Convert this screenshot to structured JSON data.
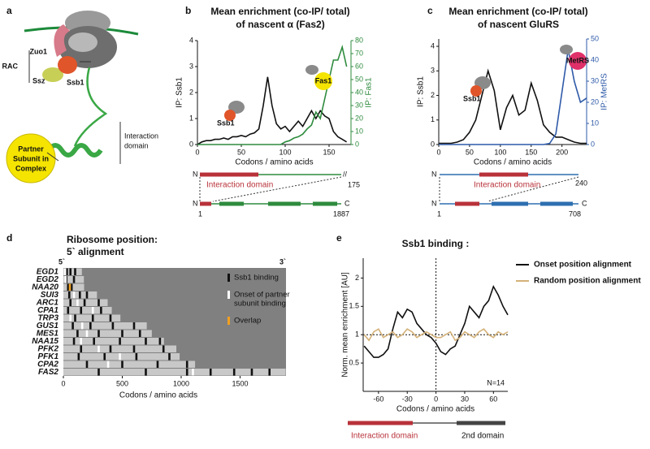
{
  "panel_labels": [
    "a",
    "b",
    "c",
    "d",
    "e"
  ],
  "diagram": {
    "rac": "RAC",
    "zuo1": "Zuo1",
    "ssz": "Ssz",
    "ssb1": "Ssb1",
    "partner": [
      "Partner",
      "Subunit in",
      "Complex"
    ],
    "interaction": [
      "Interaction",
      "domain"
    ]
  },
  "chart_data": [
    {
      "type": "line",
      "title": "Mean enrichment (co-IP/ total)",
      "subtitle": "of nascent α (Fas2)",
      "xlabel": "Codons / amino acids",
      "ylabel": "IP: Ssb1",
      "y2label": "IP: Fas1",
      "y2color": "#2e8b3e",
      "x": [
        0,
        5,
        10,
        15,
        20,
        25,
        30,
        35,
        40,
        45,
        50,
        55,
        60,
        65,
        70,
        75,
        80,
        85,
        90,
        95,
        100,
        105,
        110,
        115,
        120,
        125,
        130,
        135,
        140,
        145,
        150,
        155,
        160,
        165,
        170
      ],
      "series": [
        {
          "name": "Ssb1",
          "color": "#111111",
          "values": [
            0,
            0.1,
            0.15,
            0.15,
            0.2,
            0.2,
            0.25,
            0.2,
            0.3,
            0.3,
            0.35,
            0.3,
            0.4,
            0.45,
            0.6,
            1.5,
            2.6,
            1.5,
            0.8,
            0.6,
            0.7,
            0.5,
            0.7,
            0.9,
            0.7,
            1.0,
            1.3,
            1.0,
            1.3,
            1.1,
            1.0,
            0.5,
            0.3,
            0.2,
            0.1
          ]
        },
        {
          "name": "Fas1",
          "color": "#2e8b3e",
          "axis": "y2",
          "values": [
            0,
            0,
            0,
            0,
            0,
            0,
            0,
            0,
            0,
            0,
            0,
            0,
            0,
            0,
            0,
            0,
            0,
            0,
            0,
            0,
            2,
            3,
            5,
            6,
            8,
            12,
            15,
            25,
            20,
            35,
            50,
            65,
            65,
            75,
            60
          ]
        }
      ],
      "xlim": [
        0,
        175
      ],
      "xticks": [
        0,
        50,
        100,
        150
      ],
      "ylim": [
        0,
        4
      ],
      "yticks": [
        0,
        1,
        2,
        3,
        4
      ],
      "y2lim": [
        0,
        80
      ],
      "y2ticks": [
        0,
        10,
        20,
        30,
        40,
        50,
        60,
        70,
        80
      ],
      "domain_map": {
        "n": "N",
        "c": "C",
        "domain": "Interaction domain",
        "end": 175,
        "start": 1,
        "full_end": 1887
      }
    },
    {
      "type": "line",
      "title": "Mean enrichment (co-IP/ total)",
      "subtitle": "of nascent GluRS",
      "xlabel": "Codons / amino acids",
      "ylabel": "IP: Ssb1",
      "y2label": "IP: MetRS",
      "y2color": "#2e5aa8",
      "x": [
        0,
        10,
        20,
        30,
        40,
        50,
        60,
        70,
        80,
        90,
        100,
        110,
        120,
        130,
        140,
        150,
        160,
        170,
        180,
        190,
        200,
        210,
        220,
        230,
        240
      ],
      "series": [
        {
          "name": "Ssb1",
          "color": "#111111",
          "values": [
            0.05,
            0.05,
            0.05,
            0.1,
            0.2,
            0.5,
            1.0,
            2.0,
            3.0,
            2.2,
            0.6,
            1.5,
            2.0,
            1.2,
            1.4,
            2.5,
            1.8,
            0.8,
            0.5,
            0.3,
            0.3,
            0.2,
            0.1,
            0.05,
            0.05
          ]
        },
        {
          "name": "MetRS",
          "color": "#2e5aa8",
          "axis": "y2",
          "values": [
            0,
            0,
            0,
            0,
            0,
            0,
            0,
            0,
            0,
            0,
            0,
            0,
            0,
            0,
            0,
            0,
            0,
            0,
            0.5,
            5,
            25,
            45,
            30,
            20,
            22
          ]
        }
      ],
      "xlim": [
        0,
        240
      ],
      "xticks": [
        0,
        50,
        100,
        150,
        200
      ],
      "ylim": [
        0,
        4.3
      ],
      "yticks": [
        0,
        1,
        2,
        3,
        4
      ],
      "y2lim": [
        0,
        50
      ],
      "y2ticks": [
        0,
        10,
        20,
        30,
        40,
        50
      ],
      "domain_map": {
        "n": "N",
        "c": "C",
        "domain": "Interaction  domain",
        "end": 240,
        "start": 1,
        "full_end": 708
      }
    },
    {
      "type": "tracks",
      "title": "Ribosome position:",
      "subtitle": "5` alignment",
      "five_prime": "5`",
      "three_prime": "3`",
      "xlabel": "Codons / amino acids",
      "categories": [
        "EGD1",
        "EGD2",
        "NAA20",
        "SUI3",
        "ARC1",
        "CPA1",
        "TRP3",
        "GUS1",
        "MES1",
        "NAA15",
        "PFK2",
        "PFK1",
        "CPA2",
        "FAS2"
      ],
      "values": [
        157,
        174,
        176,
        285,
        376,
        411,
        484,
        708,
        751,
        854,
        959,
        987,
        1118,
        1887
      ],
      "ssb1_sites": [
        [
          30,
          60,
          100
        ],
        [
          25,
          90
        ],
        [
          40,
          70
        ],
        [
          50,
          140,
          200
        ],
        [
          60,
          180,
          300
        ],
        [
          40,
          150,
          320
        ],
        [
          100,
          250,
          400
        ],
        [
          80,
          230,
          420,
          600
        ],
        [
          120,
          300,
          500,
          650
        ],
        [
          90,
          260,
          480,
          700,
          820
        ],
        [
          150,
          400,
          600,
          850
        ],
        [
          130,
          350,
          620,
          900
        ],
        [
          200,
          500,
          800,
          1050
        ],
        [
          300,
          700,
          1050,
          1250,
          1450,
          1600,
          1750
        ]
      ],
      "onset_sites": [
        [
          15
        ],
        [
          18
        ],
        [],
        [
          90
        ],
        [
          120
        ],
        [
          250
        ],
        [
          60
        ],
        [
          160
        ],
        [
          200
        ],
        [
          150
        ],
        [
          300
        ],
        [
          480
        ],
        [
          380
        ],
        [
          1100
        ]
      ],
      "overlap_sites": [
        [],
        [],
        [
          55
        ],
        [],
        [],
        [],
        [],
        [],
        [],
        [],
        [],
        [],
        [],
        []
      ],
      "colors": {
        "ssb1": "#111111",
        "onset": "#ffffff",
        "overlap": "#f0a020",
        "track": "#c8c8c8",
        "background": "#808080"
      },
      "legend_lines": [
        [
          "Ssb1 binding"
        ],
        [
          "Onset of partner",
          "subunit binding"
        ],
        [
          "Overlap"
        ]
      ],
      "xlim": [
        0,
        1890
      ],
      "xticks": [
        0,
        500,
        1000,
        1500
      ]
    },
    {
      "type": "line",
      "title": "Ssb1 binding :",
      "xlabel": "Codons / amino acids",
      "ylabel": "Norm. mean enrichment [AU]",
      "annotation": "N=14",
      "hline": 1,
      "vline": 0,
      "legend": "right",
      "x": [
        -75,
        -70,
        -65,
        -60,
        -55,
        -50,
        -45,
        -40,
        -35,
        -30,
        -25,
        -20,
        -15,
        -10,
        -5,
        0,
        5,
        10,
        15,
        20,
        25,
        30,
        35,
        40,
        45,
        50,
        55,
        60,
        65,
        70,
        75
      ],
      "series": [
        {
          "name": "Onset position alignment",
          "color": "#111111",
          "values": [
            0.8,
            0.7,
            0.6,
            0.6,
            0.65,
            0.75,
            1.1,
            1.4,
            1.3,
            1.45,
            1.4,
            1.2,
            1.1,
            1.0,
            0.95,
            0.85,
            0.7,
            0.65,
            0.75,
            0.8,
            1.0,
            1.2,
            1.5,
            1.4,
            1.3,
            1.5,
            1.6,
            1.85,
            1.7,
            1.5,
            1.35
          ]
        },
        {
          "name": "Random position alignment",
          "color": "#d4b27a",
          "values": [
            1.0,
            0.9,
            1.05,
            1.1,
            0.95,
            1.0,
            1.05,
            0.95,
            1.0,
            1.1,
            1.05,
            0.95,
            1.0,
            1.05,
            1.0,
            0.95,
            0.95,
            1.0,
            1.05,
            0.9,
            0.95,
            1.05,
            1.0,
            0.95,
            1.05,
            1.1,
            1.0,
            0.95,
            1.05,
            1.0,
            1.05
          ]
        }
      ],
      "xlim": [
        -76,
        75
      ],
      "xticks": [
        -60,
        -30,
        0,
        30,
        60
      ],
      "ylim": [
        0,
        2.35
      ],
      "yticks": [
        0.5,
        1,
        1.5,
        2
      ],
      "domain_map": {
        "domain": "Interaction domain",
        "second": "2nd domain"
      }
    }
  ]
}
